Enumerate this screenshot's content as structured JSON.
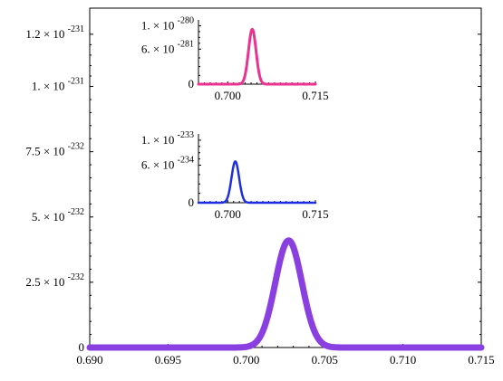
{
  "chart_data": [
    {
      "type": "line",
      "title": "",
      "xlabel": "",
      "ylabel": "",
      "xlim": [
        0.69,
        0.715
      ],
      "ylim": [
        0,
        1.3e-231
      ],
      "xticks": [
        0.69,
        0.695,
        0.7,
        0.705,
        0.71,
        0.715
      ],
      "xtick_labels": [
        "0.690",
        "0.695",
        "0.700",
        "0.705",
        "0.710",
        "0.715"
      ],
      "yticks": [
        {
          "value": 0,
          "mantissa": "0",
          "exp": ""
        },
        {
          "value": 2.5e-232,
          "mantissa": "2.5 × 10",
          "exp": "-232"
        },
        {
          "value": 5e-232,
          "mantissa": "5. × 10",
          "exp": "-232"
        },
        {
          "value": 7.5e-232,
          "mantissa": "7.5 × 10",
          "exp": "-232"
        },
        {
          "value": 1e-231,
          "mantissa": "1. × 10",
          "exp": "-231"
        },
        {
          "value": 1.2e-231,
          "mantissa": "1.2 × 10",
          "exp": "-231"
        }
      ],
      "series": [
        {
          "color": "#8a3fe0",
          "peak_x": 0.7027,
          "peak_y": 4.1e-232,
          "width": 0.00085
        }
      ],
      "grid": false
    },
    {
      "type": "line",
      "title": "",
      "xlim": [
        0.695,
        0.715
      ],
      "ylim": [
        0,
        1.1e-280
      ],
      "xticks": [
        0.7,
        0.715
      ],
      "xtick_labels": [
        "0.700",
        "0.715"
      ],
      "yticks": [
        {
          "value": 0,
          "mantissa": "0",
          "exp": ""
        },
        {
          "value": 6e-281,
          "mantissa": "6. × 10",
          "exp": "-281"
        },
        {
          "value": 1e-280,
          "mantissa": "1. × 10",
          "exp": "-280"
        }
      ],
      "series": [
        {
          "color": "#e8338f",
          "peak_x": 0.7042,
          "peak_y": 9.4e-281,
          "width": 0.00065
        }
      ],
      "grid": false
    },
    {
      "type": "line",
      "title": "",
      "xlim": [
        0.695,
        0.715
      ],
      "ylim": [
        0,
        1.1e-233
      ],
      "xticks": [
        0.7,
        0.715
      ],
      "xtick_labels": [
        "0.700",
        "0.715"
      ],
      "yticks": [
        {
          "value": 0,
          "mantissa": "0",
          "exp": ""
        },
        {
          "value": 6e-234,
          "mantissa": "6. × 10",
          "exp": "-234"
        },
        {
          "value": 1e-233,
          "mantissa": "1. × 10",
          "exp": "-233"
        }
      ],
      "series": [
        {
          "color": "#1f2fe0",
          "peak_x": 0.7013,
          "peak_y": 6.6e-234,
          "width": 0.00065
        }
      ],
      "grid": false
    }
  ]
}
